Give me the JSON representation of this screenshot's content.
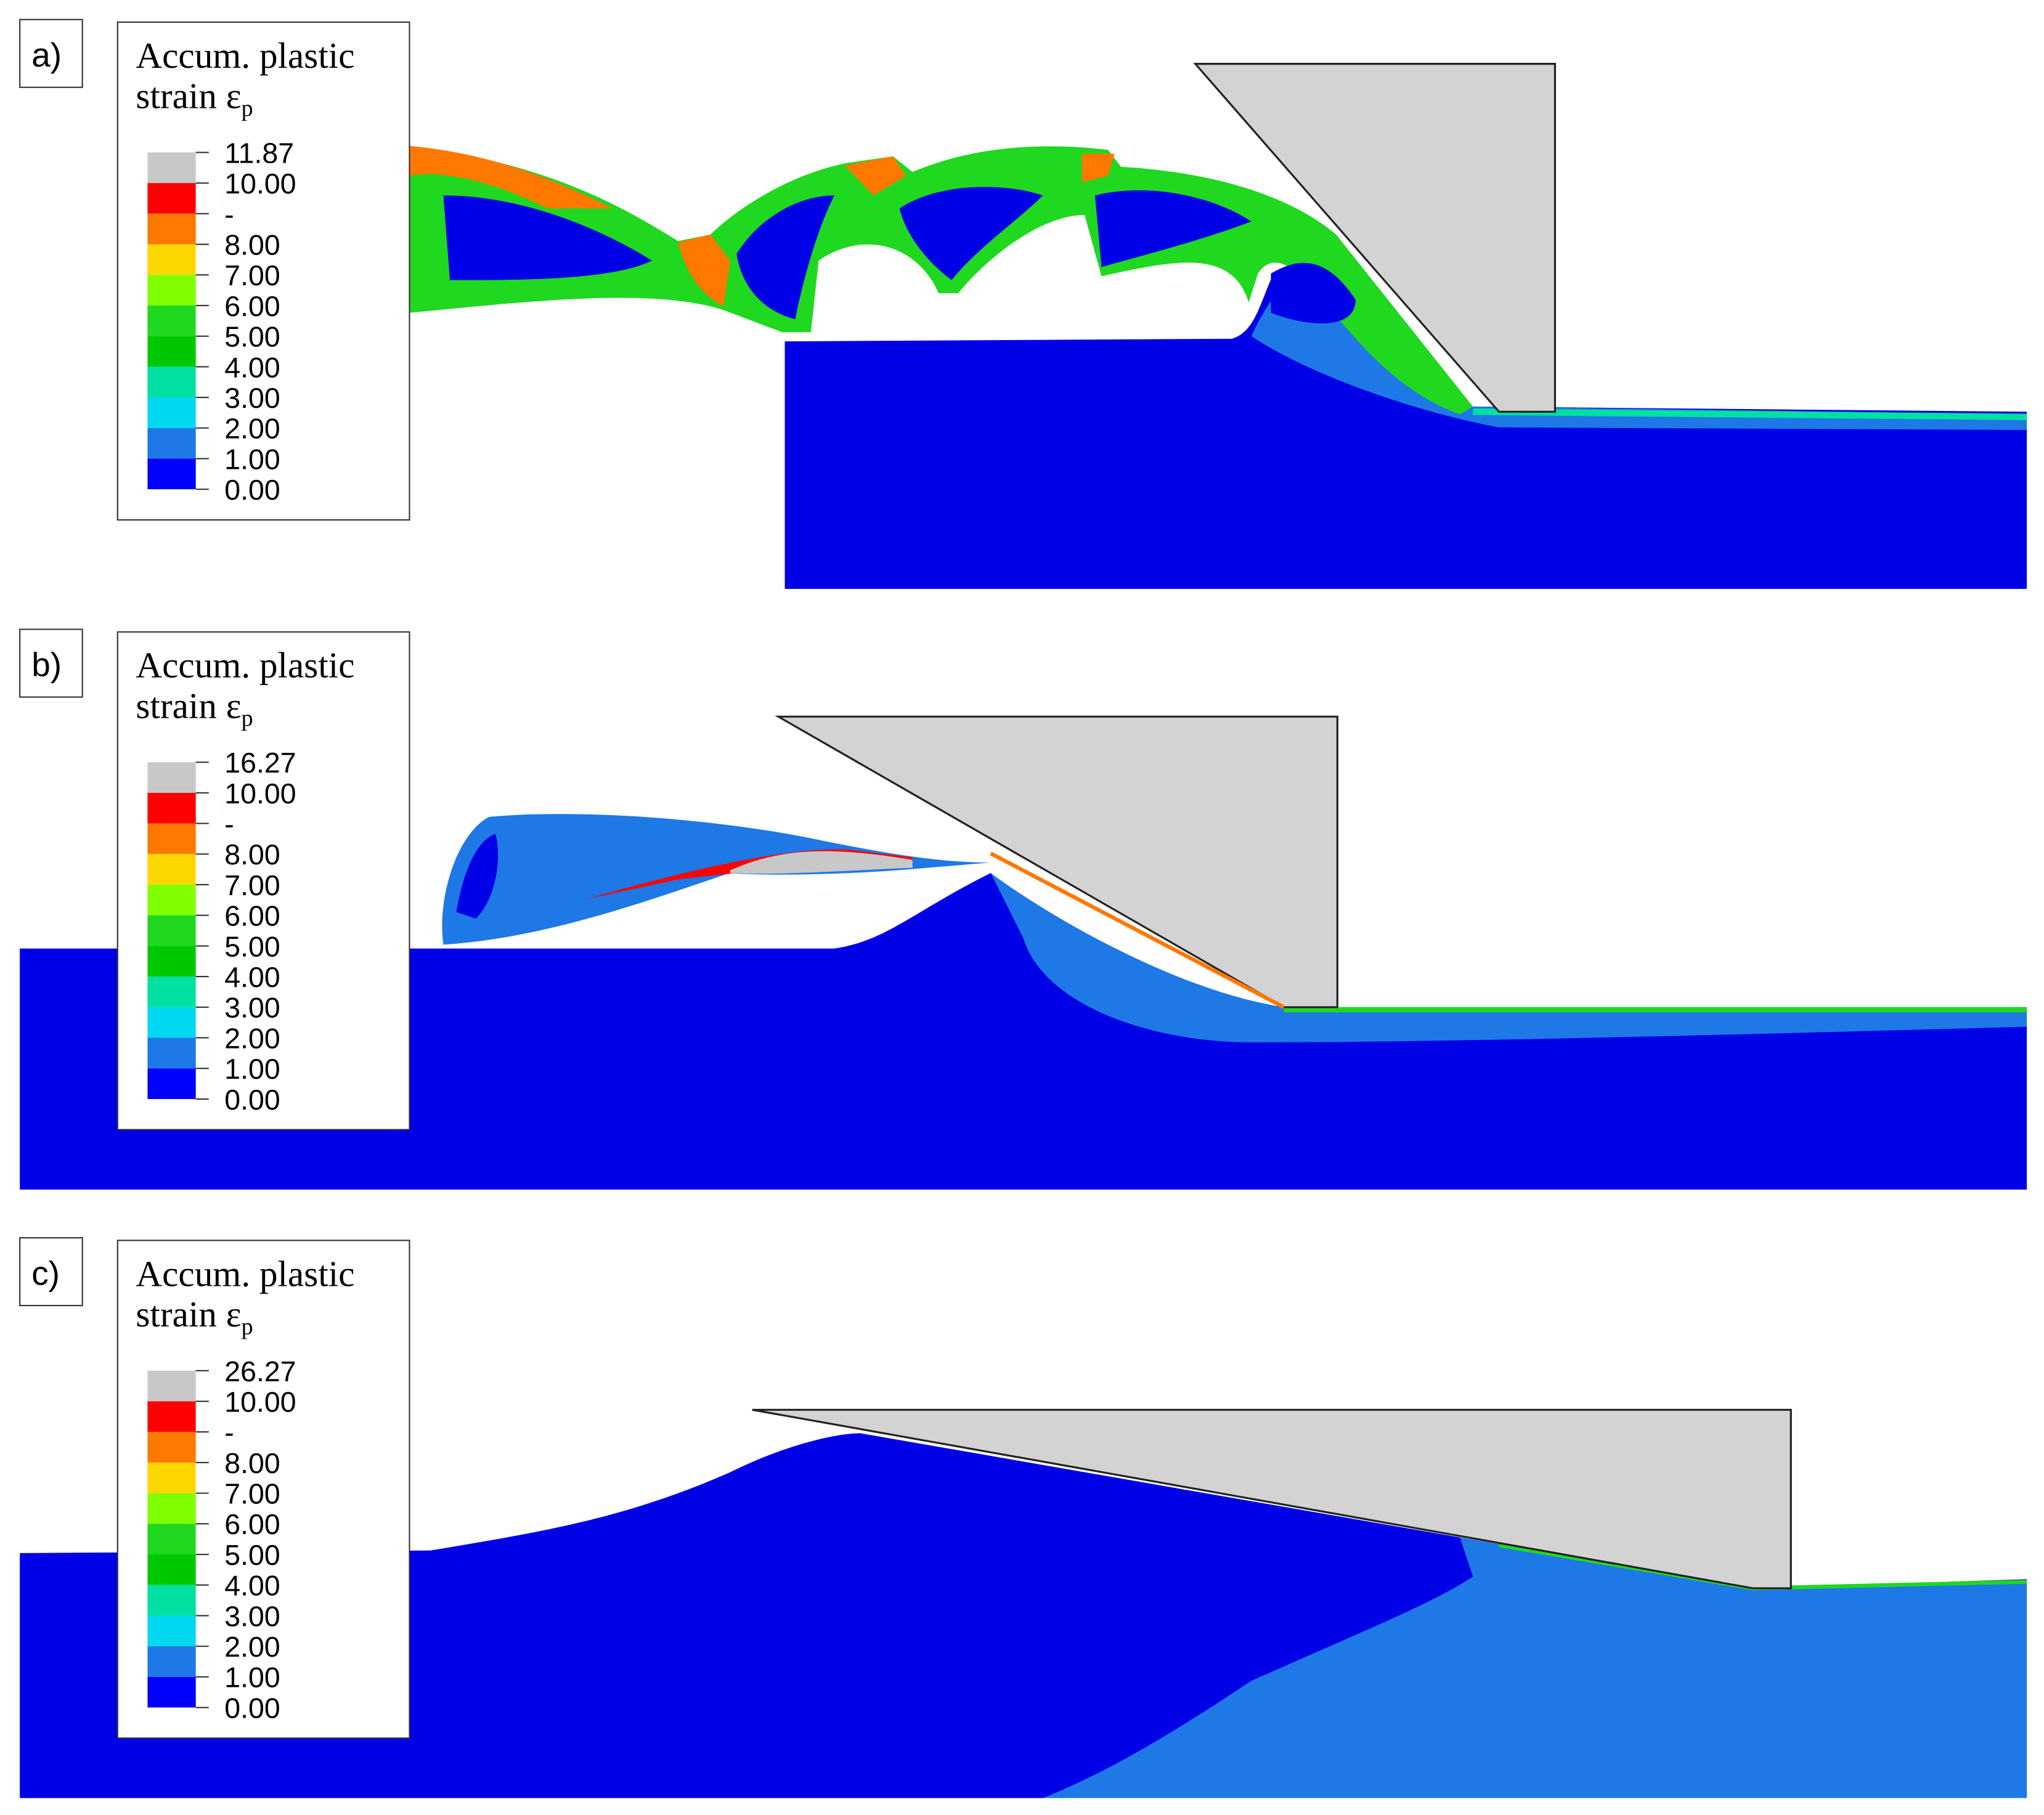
{
  "legend_colors": [
    "#c8c8c8",
    "#ff0000",
    "#ff7800",
    "#ffd700",
    "#80ff00",
    "#20d820",
    "#00c800",
    "#00e0a0",
    "#00d8f0",
    "#1e78e6",
    "#0000ff"
  ],
  "panels": [
    {
      "label": "a)",
      "legend": {
        "title": [
          "Accum. plastic",
          "strain ε"
        ],
        "subscript": "p",
        "labels": [
          "11.87",
          "10.00",
          "-",
          "8.00",
          "7.00",
          "6.00",
          "5.00",
          "4.00",
          "3.00",
          "2.00",
          "1.00",
          "0.00"
        ]
      }
    },
    {
      "label": "b)",
      "legend": {
        "title": [
          "Accum. plastic",
          "strain ε"
        ],
        "subscript": "p",
        "labels": [
          "16.27",
          "10.00",
          "-",
          "8.00",
          "7.00",
          "6.00",
          "5.00",
          "4.00",
          "3.00",
          "2.00",
          "1.00",
          "0.00"
        ]
      }
    },
    {
      "label": "c)",
      "legend": {
        "title": [
          "Accum. plastic",
          "strain ε"
        ],
        "subscript": "p",
        "labels": [
          "26.27",
          "10.00",
          "-",
          "8.00",
          "7.00",
          "6.00",
          "5.00",
          "4.00",
          "3.00",
          "2.00",
          "1.00",
          "0.00"
        ]
      }
    }
  ]
}
